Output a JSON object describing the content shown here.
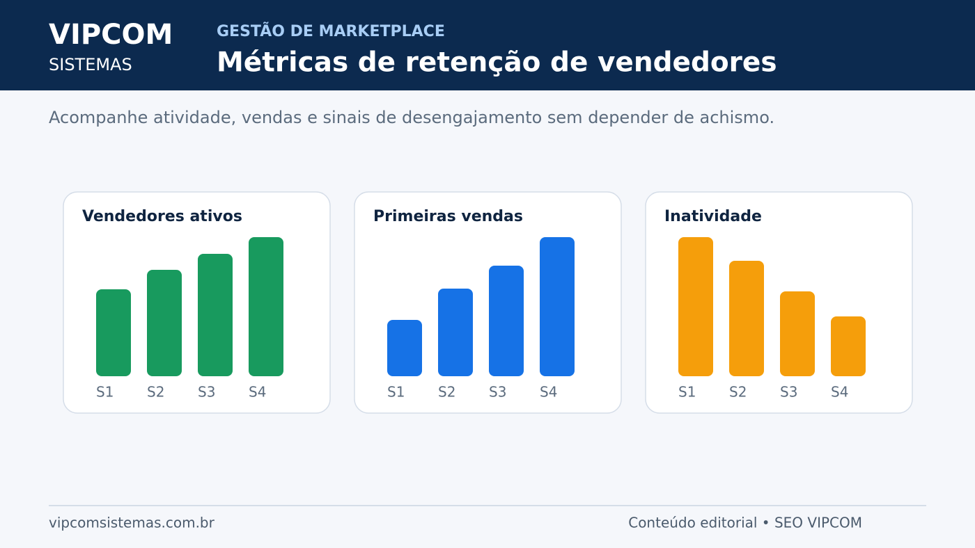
{
  "header": {
    "brand": "VIPCOM",
    "brand_sub": "SISTEMAS",
    "kicker": "GESTÃO DE MARKETPLACE",
    "title": "Métricas de retenção de vendedores"
  },
  "subtitle": "Acompanhe atividade, vendas e sinais de desengajamento sem depender de achismo.",
  "chart_data": [
    {
      "type": "bar",
      "title": "Vendedores ativos",
      "categories": [
        "S1",
        "S2",
        "S3",
        "S4"
      ],
      "values": [
        125,
        153,
        176,
        200
      ],
      "color": "#189a5e",
      "ylim": [
        0,
        200
      ]
    },
    {
      "type": "bar",
      "title": "Primeiras vendas",
      "categories": [
        "S1",
        "S2",
        "S3",
        "S4"
      ],
      "values": [
        81,
        126,
        159,
        200
      ],
      "color": "#1672e6",
      "ylim": [
        0,
        200
      ]
    },
    {
      "type": "bar",
      "title": "Inatividade",
      "categories": [
        "S1",
        "S2",
        "S3",
        "S4"
      ],
      "values": [
        200,
        166,
        122,
        86
      ],
      "color": "#f59e0b",
      "ylim": [
        0,
        200
      ]
    }
  ],
  "footer": {
    "site": "vipcomsistemas.com.br",
    "credit": "Conteúdo editorial • SEO VIPCOM"
  }
}
